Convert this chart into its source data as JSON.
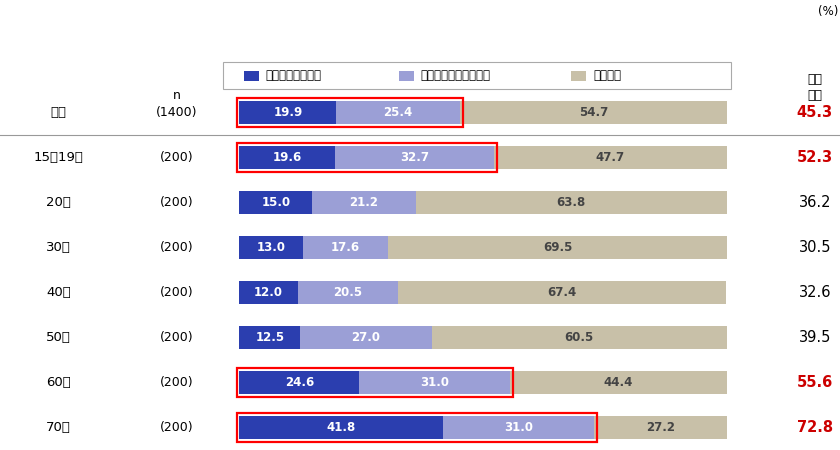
{
  "categories": [
    "全体",
    "15～19歳",
    "20代",
    "30代",
    "40代",
    "50代",
    "60代",
    "70代"
  ],
  "n_labels": [
    "(1400)",
    "(200)",
    "(200)",
    "(200)",
    "(200)",
    "(200)",
    "(200)",
    "(200)"
  ],
  "val1": [
    19.9,
    19.6,
    15.0,
    13.0,
    12.0,
    12.5,
    24.6,
    41.8
  ],
  "val2": [
    25.4,
    32.7,
    21.2,
    17.6,
    20.5,
    27.0,
    31.0,
    31.0
  ],
  "val3": [
    54.7,
    47.7,
    63.8,
    69.5,
    67.4,
    60.5,
    44.4,
    27.2
  ],
  "totals": [
    "45.3",
    "52.3",
    "36.2",
    "30.5",
    "32.6",
    "39.5",
    "55.6",
    "72.8"
  ],
  "total_red": [
    true,
    true,
    false,
    false,
    false,
    false,
    true,
    true
  ],
  "red_box": [
    true,
    true,
    false,
    false,
    false,
    false,
    true,
    true
  ],
  "color1": "#2B3EAF",
  "color2": "#9B9FD6",
  "color3": "#C8C0A8",
  "legend_labels": [
    "確かに知っている",
    "見聞きしたことがある",
    "知らない"
  ],
  "bar_max": 100,
  "background_color": "#FFFFFF",
  "title_top_right": "(%)",
  "col_header_n": "n",
  "col_header_total": "認知\n合計"
}
